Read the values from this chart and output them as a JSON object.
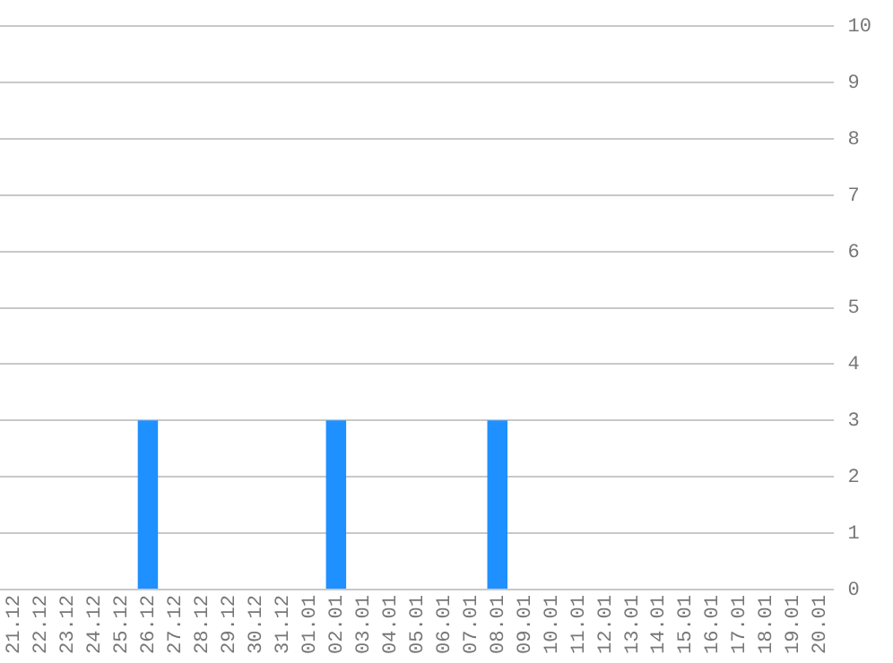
{
  "chart_data": {
    "type": "bar",
    "categories": [
      "21.12",
      "22.12",
      "23.12",
      "24.12",
      "25.12",
      "26.12",
      "27.12",
      "28.12",
      "29.12",
      "30.12",
      "31.12",
      "01.01",
      "02.01",
      "03.01",
      "04.01",
      "05.01",
      "06.01",
      "07.01",
      "08.01",
      "09.01",
      "10.01",
      "11.01",
      "12.01",
      "13.01",
      "14.01",
      "15.01",
      "16.01",
      "17.01",
      "18.01",
      "19.01",
      "20.01"
    ],
    "values": [
      0,
      0,
      0,
      0,
      0,
      3,
      0,
      0,
      0,
      0,
      0,
      0,
      3,
      0,
      0,
      0,
      0,
      0,
      3,
      0,
      0,
      0,
      0,
      0,
      0,
      0,
      0,
      0,
      0,
      0,
      0
    ],
    "color": "#1e90ff",
    "ylim": [
      0,
      10
    ],
    "yticks": [
      0,
      1,
      2,
      3,
      4,
      5,
      6,
      7,
      8,
      9,
      10
    ],
    "grid": "y"
  }
}
